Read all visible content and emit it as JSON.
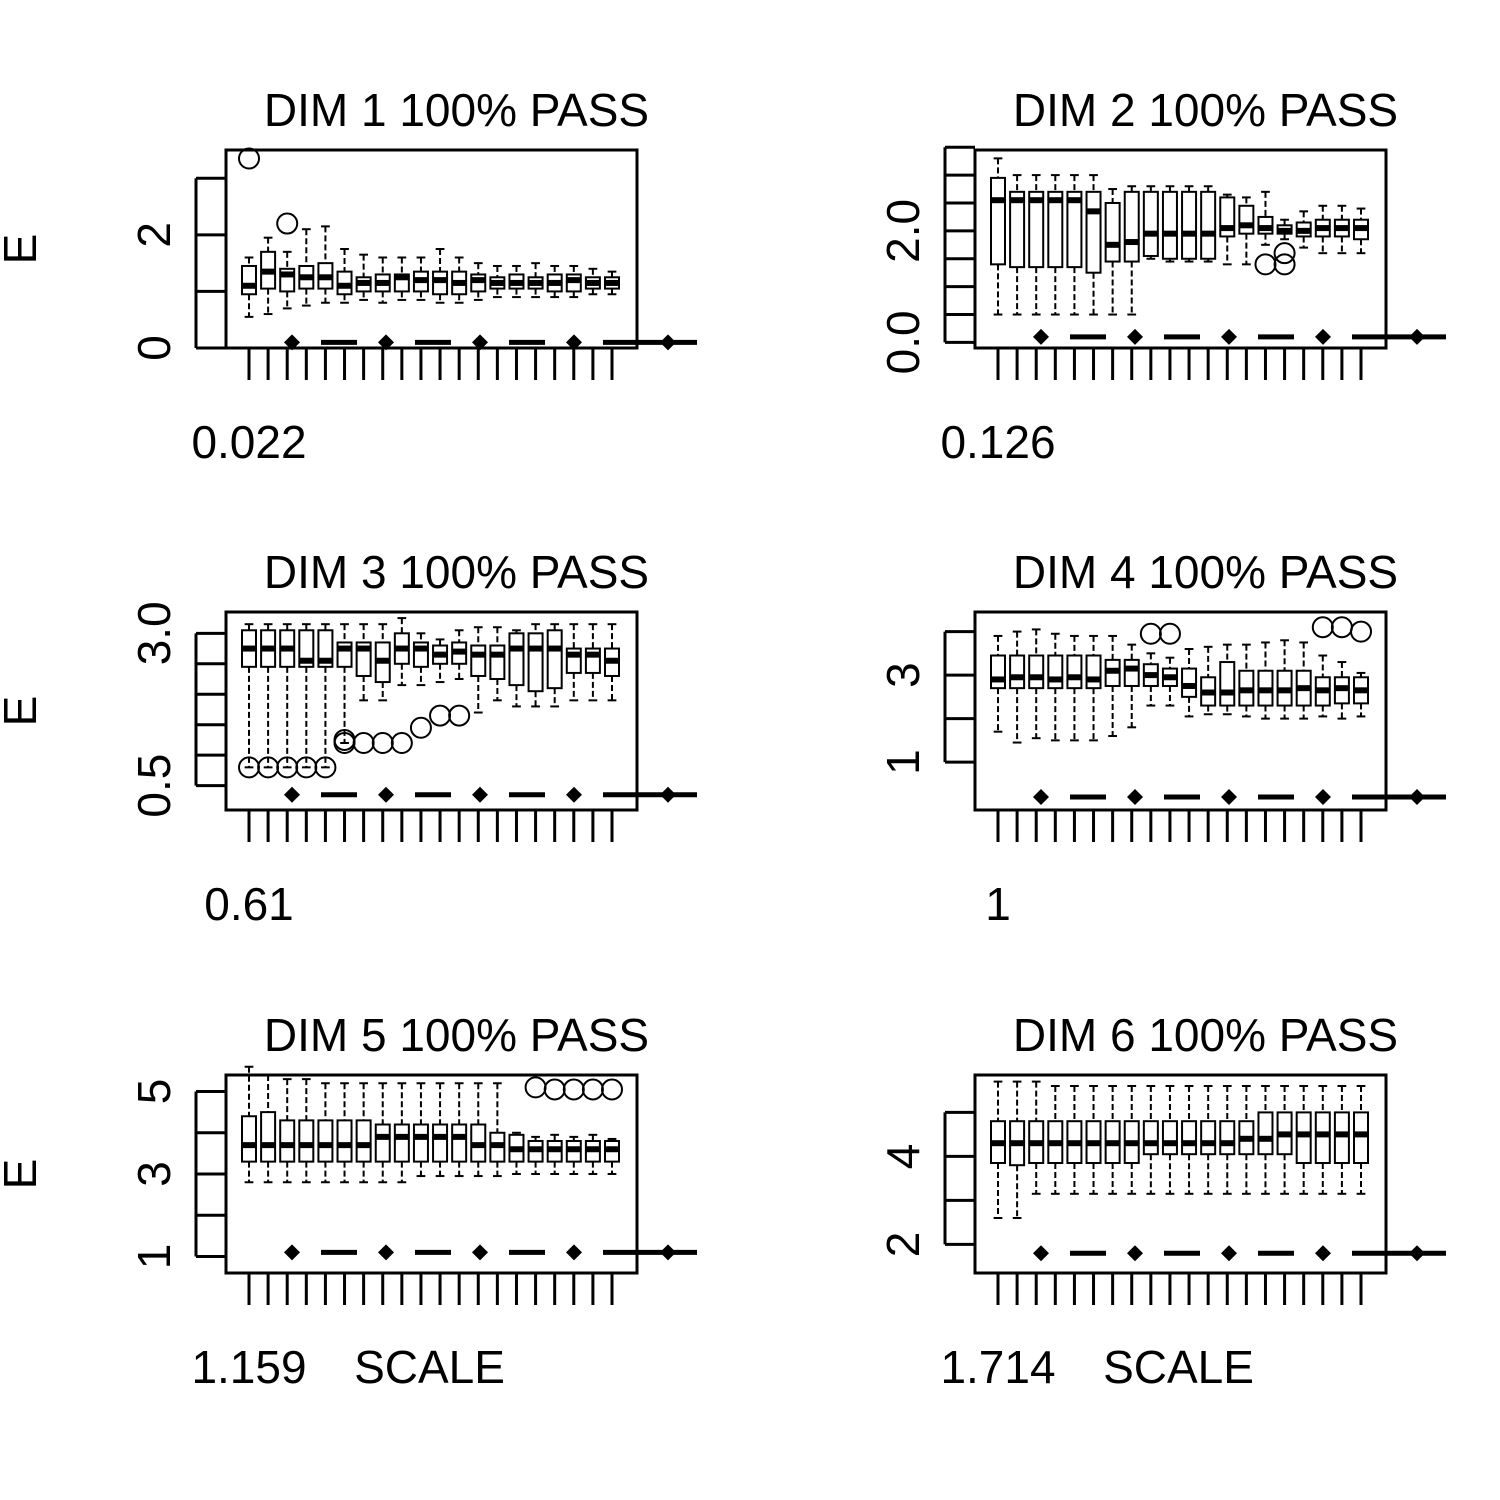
{
  "chart_data": [
    {
      "type": "boxplot",
      "title": "DIM 1 100% PASS",
      "ylabel": "E",
      "xlabel": "0.022",
      "ylim": [
        0,
        3.5
      ],
      "y_ticks": [
        0,
        2
      ],
      "minor_ticks": [
        0,
        1,
        2,
        3
      ],
      "boxes": [
        {
          "lo": 0.55,
          "q1": 0.95,
          "med": 1.1,
          "q3": 1.45,
          "hi": 1.6
        },
        {
          "lo": 0.6,
          "q1": 1.05,
          "med": 1.35,
          "q3": 1.7,
          "hi": 1.95
        },
        {
          "lo": 0.7,
          "q1": 1.0,
          "med": 1.3,
          "q3": 1.4,
          "hi": 1.7
        },
        {
          "lo": 0.75,
          "q1": 1.05,
          "med": 1.25,
          "q3": 1.45,
          "hi": 2.1
        },
        {
          "lo": 0.8,
          "q1": 1.05,
          "med": 1.25,
          "q3": 1.5,
          "hi": 2.15
        },
        {
          "lo": 0.8,
          "q1": 0.95,
          "med": 1.1,
          "q3": 1.35,
          "hi": 1.75
        },
        {
          "lo": 0.85,
          "q1": 1.0,
          "med": 1.15,
          "q3": 1.25,
          "hi": 1.65
        },
        {
          "lo": 0.8,
          "q1": 1.0,
          "med": 1.15,
          "q3": 1.3,
          "hi": 1.6
        },
        {
          "lo": 0.85,
          "q1": 1.0,
          "med": 1.25,
          "q3": 1.3,
          "hi": 1.6
        },
        {
          "lo": 0.85,
          "q1": 1.0,
          "med": 1.2,
          "q3": 1.35,
          "hi": 1.6
        },
        {
          "lo": 0.8,
          "q1": 0.95,
          "med": 1.2,
          "q3": 1.35,
          "hi": 1.75
        },
        {
          "lo": 0.8,
          "q1": 0.95,
          "med": 1.15,
          "q3": 1.35,
          "hi": 1.6
        },
        {
          "lo": 0.85,
          "q1": 1.0,
          "med": 1.2,
          "q3": 1.3,
          "hi": 1.5
        },
        {
          "lo": 0.9,
          "q1": 1.05,
          "med": 1.15,
          "q3": 1.25,
          "hi": 1.45
        },
        {
          "lo": 0.9,
          "q1": 1.05,
          "med": 1.15,
          "q3": 1.3,
          "hi": 1.45
        },
        {
          "lo": 0.9,
          "q1": 1.05,
          "med": 1.15,
          "q3": 1.25,
          "hi": 1.5
        },
        {
          "lo": 0.9,
          "q1": 1.0,
          "med": 1.15,
          "q3": 1.3,
          "hi": 1.45
        },
        {
          "lo": 0.9,
          "q1": 1.0,
          "med": 1.2,
          "q3": 1.3,
          "hi": 1.45
        },
        {
          "lo": 0.95,
          "q1": 1.05,
          "med": 1.15,
          "q3": 1.25,
          "hi": 1.4
        },
        {
          "lo": 0.95,
          "q1": 1.05,
          "med": 1.15,
          "q3": 1.25,
          "hi": 1.35
        }
      ],
      "outliers": [
        [
          1,
          3.35
        ],
        [
          3,
          2.2
        ]
      ],
      "bottom_row_y": 0.1
    },
    {
      "type": "boxplot",
      "title": "DIM 2 100% PASS",
      "ylabel": "",
      "xlabel": "0.126",
      "ylim": [
        -0.1,
        3.45
      ],
      "y_ticks": [
        0.0,
        2.0
      ],
      "y_tick_labels": [
        "0.0",
        "2.0"
      ],
      "minor_ticks": [
        0.0,
        0.5,
        1.0,
        1.5,
        2.0,
        2.5,
        3.0,
        3.5
      ],
      "boxes": [
        {
          "lo": 0.5,
          "q1": 1.4,
          "med": 2.55,
          "q3": 2.95,
          "hi": 3.3
        },
        {
          "lo": 0.5,
          "q1": 1.35,
          "med": 2.55,
          "q3": 2.7,
          "hi": 3.0
        },
        {
          "lo": 0.5,
          "q1": 1.35,
          "med": 2.55,
          "q3": 2.7,
          "hi": 3.0
        },
        {
          "lo": 0.5,
          "q1": 1.35,
          "med": 2.55,
          "q3": 2.7,
          "hi": 3.0
        },
        {
          "lo": 0.5,
          "q1": 1.35,
          "med": 2.55,
          "q3": 2.7,
          "hi": 3.0
        },
        {
          "lo": 0.5,
          "q1": 1.25,
          "med": 2.35,
          "q3": 2.7,
          "hi": 3.0
        },
        {
          "lo": 0.5,
          "q1": 1.45,
          "med": 1.75,
          "q3": 2.5,
          "hi": 2.75
        },
        {
          "lo": 0.5,
          "q1": 1.45,
          "med": 1.8,
          "q3": 2.7,
          "hi": 2.8
        },
        {
          "lo": 1.5,
          "q1": 1.55,
          "med": 1.95,
          "q3": 2.7,
          "hi": 2.8
        },
        {
          "lo": 1.45,
          "q1": 1.5,
          "med": 1.95,
          "q3": 2.7,
          "hi": 2.8
        },
        {
          "lo": 1.45,
          "q1": 1.5,
          "med": 1.95,
          "q3": 2.7,
          "hi": 2.8
        },
        {
          "lo": 1.45,
          "q1": 1.5,
          "med": 1.95,
          "q3": 2.7,
          "hi": 2.8
        },
        {
          "lo": 1.4,
          "q1": 1.9,
          "med": 2.05,
          "q3": 2.6,
          "hi": 2.65
        },
        {
          "lo": 1.4,
          "q1": 1.95,
          "med": 2.1,
          "q3": 2.45,
          "hi": 2.6
        },
        {
          "lo": 1.75,
          "q1": 1.95,
          "med": 2.05,
          "q3": 2.25,
          "hi": 2.7
        },
        {
          "lo": 1.85,
          "q1": 1.95,
          "med": 2.0,
          "q3": 2.1,
          "hi": 2.2
        },
        {
          "lo": 1.7,
          "q1": 1.9,
          "med": 2.0,
          "q3": 2.15,
          "hi": 2.35
        },
        {
          "lo": 1.6,
          "q1": 1.9,
          "med": 2.05,
          "q3": 2.2,
          "hi": 2.45
        },
        {
          "lo": 1.6,
          "q1": 1.9,
          "med": 2.05,
          "q3": 2.2,
          "hi": 2.45
        },
        {
          "lo": 1.6,
          "q1": 1.85,
          "med": 2.05,
          "q3": 2.2,
          "hi": 2.4
        }
      ],
      "outliers": [
        [
          15,
          1.4
        ],
        [
          16,
          1.4
        ],
        [
          16,
          1.6
        ]
      ],
      "bottom_row_y": 0.1
    },
    {
      "type": "boxplot",
      "title": "DIM 3 100% PASS",
      "ylabel": "E",
      "xlabel": "0.61",
      "ylim": [
        0.1,
        3.35
      ],
      "y_ticks": [
        0.5,
        3.0
      ],
      "y_tick_labels": [
        "0.5",
        "3.0"
      ],
      "minor_ticks": [
        0.5,
        1.0,
        1.5,
        2.0,
        2.5,
        3.0
      ],
      "boxes": [
        {
          "lo": 0.8,
          "q1": 2.45,
          "med": 2.75,
          "q3": 3.05,
          "hi": 3.15
        },
        {
          "lo": 0.8,
          "q1": 2.45,
          "med": 2.75,
          "q3": 3.05,
          "hi": 3.15
        },
        {
          "lo": 0.8,
          "q1": 2.45,
          "med": 2.75,
          "q3": 3.05,
          "hi": 3.15
        },
        {
          "lo": 0.8,
          "q1": 2.45,
          "med": 2.55,
          "q3": 3.05,
          "hi": 3.15
        },
        {
          "lo": 0.8,
          "q1": 2.45,
          "med": 2.55,
          "q3": 3.05,
          "hi": 3.15
        },
        {
          "lo": 1.2,
          "q1": 2.45,
          "med": 2.75,
          "q3": 2.85,
          "hi": 3.15
        },
        {
          "lo": 1.9,
          "q1": 2.3,
          "med": 2.75,
          "q3": 2.85,
          "hi": 3.15
        },
        {
          "lo": 1.9,
          "q1": 2.2,
          "med": 2.55,
          "q3": 2.85,
          "hi": 3.15
        },
        {
          "lo": 2.15,
          "q1": 2.5,
          "med": 2.75,
          "q3": 3.0,
          "hi": 3.25
        },
        {
          "lo": 2.15,
          "q1": 2.45,
          "med": 2.75,
          "q3": 2.85,
          "hi": 3.0
        },
        {
          "lo": 2.2,
          "q1": 2.5,
          "med": 2.65,
          "q3": 2.8,
          "hi": 2.9
        },
        {
          "lo": 2.25,
          "q1": 2.5,
          "med": 2.7,
          "q3": 2.85,
          "hi": 3.05
        },
        {
          "lo": 1.7,
          "q1": 2.3,
          "med": 2.65,
          "q3": 2.8,
          "hi": 3.1
        },
        {
          "lo": 1.9,
          "q1": 2.25,
          "med": 2.65,
          "q3": 2.8,
          "hi": 3.1
        },
        {
          "lo": 1.8,
          "q1": 2.15,
          "med": 2.75,
          "q3": 3.0,
          "hi": 3.05
        },
        {
          "lo": 1.8,
          "q1": 2.05,
          "med": 2.75,
          "q3": 3.0,
          "hi": 3.15
        },
        {
          "lo": 1.8,
          "q1": 2.1,
          "med": 2.75,
          "q3": 3.05,
          "hi": 3.15
        },
        {
          "lo": 1.9,
          "q1": 2.35,
          "med": 2.65,
          "q3": 2.75,
          "hi": 3.15
        },
        {
          "lo": 1.9,
          "q1": 2.35,
          "med": 2.65,
          "q3": 2.75,
          "hi": 3.15
        },
        {
          "lo": 1.9,
          "q1": 2.3,
          "med": 2.55,
          "q3": 2.75,
          "hi": 3.15
        }
      ],
      "outliers": [
        [
          1,
          0.8
        ],
        [
          2,
          0.8
        ],
        [
          3,
          0.8
        ],
        [
          4,
          0.8
        ],
        [
          5,
          0.8
        ],
        [
          6,
          1.2
        ],
        [
          6,
          1.25
        ],
        [
          7,
          1.2
        ],
        [
          8,
          1.2
        ],
        [
          9,
          1.2
        ],
        [
          10,
          1.45
        ],
        [
          11,
          1.65
        ],
        [
          12,
          1.65
        ]
      ],
      "bottom_row_y": 0.35
    },
    {
      "type": "boxplot",
      "title": "DIM 4 100% PASS",
      "ylabel": "",
      "xlabel": "1",
      "ylim": [
        -0.1,
        4.45
      ],
      "y_ticks": [
        1,
        3
      ],
      "minor_ticks": [
        1,
        2,
        3,
        4
      ],
      "boxes": [
        {
          "lo": 1.7,
          "q1": 2.7,
          "med": 2.9,
          "q3": 3.45,
          "hi": 3.9
        },
        {
          "lo": 1.45,
          "q1": 2.7,
          "med": 2.95,
          "q3": 3.45,
          "hi": 4.0
        },
        {
          "lo": 1.55,
          "q1": 2.7,
          "med": 2.95,
          "q3": 3.45,
          "hi": 4.05
        },
        {
          "lo": 1.5,
          "q1": 2.7,
          "med": 2.9,
          "q3": 3.45,
          "hi": 3.95
        },
        {
          "lo": 1.5,
          "q1": 2.7,
          "med": 2.95,
          "q3": 3.45,
          "hi": 3.9
        },
        {
          "lo": 1.5,
          "q1": 2.7,
          "med": 2.9,
          "q3": 3.45,
          "hi": 3.9
        },
        {
          "lo": 1.6,
          "q1": 2.75,
          "med": 3.1,
          "q3": 3.35,
          "hi": 3.9
        },
        {
          "lo": 1.8,
          "q1": 2.75,
          "med": 3.15,
          "q3": 3.35,
          "hi": 3.7
        },
        {
          "lo": 2.3,
          "q1": 2.75,
          "med": 3.0,
          "q3": 3.25,
          "hi": 3.5
        },
        {
          "lo": 2.3,
          "q1": 2.75,
          "med": 2.95,
          "q3": 3.15,
          "hi": 3.4
        },
        {
          "lo": 2.05,
          "q1": 2.5,
          "med": 2.75,
          "q3": 3.15,
          "hi": 3.6
        },
        {
          "lo": 2.1,
          "q1": 2.3,
          "med": 2.6,
          "q3": 2.95,
          "hi": 3.65
        },
        {
          "lo": 2.1,
          "q1": 2.3,
          "med": 2.6,
          "q3": 3.3,
          "hi": 3.7
        },
        {
          "lo": 2.05,
          "q1": 2.3,
          "med": 2.65,
          "q3": 3.1,
          "hi": 3.7
        },
        {
          "lo": 2.0,
          "q1": 2.3,
          "med": 2.65,
          "q3": 3.1,
          "hi": 3.75
        },
        {
          "lo": 2.0,
          "q1": 2.3,
          "med": 2.65,
          "q3": 3.1,
          "hi": 3.8
        },
        {
          "lo": 2.0,
          "q1": 2.3,
          "med": 2.7,
          "q3": 3.1,
          "hi": 3.75
        },
        {
          "lo": 2.05,
          "q1": 2.3,
          "med": 2.65,
          "q3": 2.95,
          "hi": 3.45
        },
        {
          "lo": 2.0,
          "q1": 2.35,
          "med": 2.7,
          "q3": 2.95,
          "hi": 3.3
        },
        {
          "lo": 2.05,
          "q1": 2.35,
          "med": 2.65,
          "q3": 2.95,
          "hi": 3.05
        }
      ],
      "outliers": [
        [
          9,
          3.95
        ],
        [
          10,
          3.95
        ],
        [
          18,
          4.1
        ],
        [
          19,
          4.1
        ],
        [
          20,
          4.0
        ]
      ],
      "bottom_row_y": 0.2
    },
    {
      "type": "boxplot",
      "title": "DIM 5 100% PASS",
      "ylabel": "E",
      "xlabel": "1.159",
      "xlabel2": "SCALE",
      "ylim": [
        0.6,
        5.4
      ],
      "y_ticks": [
        1,
        3,
        5
      ],
      "minor_ticks": [
        1,
        2,
        3,
        4,
        5
      ],
      "boxes": [
        {
          "lo": 2.8,
          "q1": 3.3,
          "med": 3.7,
          "q3": 4.4,
          "hi": 5.6
        },
        {
          "lo": 2.8,
          "q1": 3.3,
          "med": 3.7,
          "q3": 4.5,
          "hi": 5.4
        },
        {
          "lo": 2.8,
          "q1": 3.3,
          "med": 3.7,
          "q3": 4.3,
          "hi": 5.3
        },
        {
          "lo": 2.8,
          "q1": 3.3,
          "med": 3.7,
          "q3": 4.3,
          "hi": 5.3
        },
        {
          "lo": 2.8,
          "q1": 3.3,
          "med": 3.7,
          "q3": 4.3,
          "hi": 5.2
        },
        {
          "lo": 2.8,
          "q1": 3.3,
          "med": 3.7,
          "q3": 4.3,
          "hi": 5.2
        },
        {
          "lo": 2.8,
          "q1": 3.3,
          "med": 3.7,
          "q3": 4.3,
          "hi": 5.2
        },
        {
          "lo": 2.8,
          "q1": 3.3,
          "med": 3.9,
          "q3": 4.2,
          "hi": 5.2
        },
        {
          "lo": 2.8,
          "q1": 3.3,
          "med": 3.9,
          "q3": 4.2,
          "hi": 5.2
        },
        {
          "lo": 2.95,
          "q1": 3.3,
          "med": 3.9,
          "q3": 4.2,
          "hi": 5.2
        },
        {
          "lo": 2.95,
          "q1": 3.3,
          "med": 3.9,
          "q3": 4.2,
          "hi": 5.2
        },
        {
          "lo": 2.95,
          "q1": 3.3,
          "med": 3.9,
          "q3": 4.2,
          "hi": 5.2
        },
        {
          "lo": 2.95,
          "q1": 3.3,
          "med": 3.7,
          "q3": 4.2,
          "hi": 5.2
        },
        {
          "lo": 2.95,
          "q1": 3.3,
          "med": 3.7,
          "q3": 4.0,
          "hi": 5.2
        },
        {
          "lo": 3.0,
          "q1": 3.3,
          "med": 3.6,
          "q3": 3.95,
          "hi": 4.0
        },
        {
          "lo": 3.0,
          "q1": 3.3,
          "med": 3.6,
          "q3": 3.8,
          "hi": 3.9
        },
        {
          "lo": 3.0,
          "q1": 3.3,
          "med": 3.6,
          "q3": 3.8,
          "hi": 3.95
        },
        {
          "lo": 3.0,
          "q1": 3.3,
          "med": 3.6,
          "q3": 3.8,
          "hi": 3.9
        },
        {
          "lo": 3.0,
          "q1": 3.3,
          "med": 3.6,
          "q3": 3.8,
          "hi": 3.95
        },
        {
          "lo": 3.0,
          "q1": 3.3,
          "med": 3.6,
          "q3": 3.8,
          "hi": 3.85
        }
      ],
      "outliers": [
        [
          16,
          5.1
        ],
        [
          17,
          5.05
        ],
        [
          18,
          5.05
        ],
        [
          19,
          5.05
        ],
        [
          20,
          5.05
        ]
      ],
      "bottom_row_y": 1.1
    },
    {
      "type": "boxplot",
      "title": "DIM 6 100% PASS",
      "ylabel": "",
      "xlabel": "1.714",
      "xlabel2": "SCALE",
      "ylim": [
        1.35,
        5.85
      ],
      "y_ticks": [
        2,
        4
      ],
      "minor_ticks": [
        2,
        3,
        4,
        5
      ],
      "boxes": [
        {
          "lo": 2.6,
          "q1": 3.85,
          "med": 4.3,
          "q3": 4.8,
          "hi": 5.7
        },
        {
          "lo": 2.6,
          "q1": 3.8,
          "med": 4.3,
          "q3": 4.8,
          "hi": 5.7
        },
        {
          "lo": 3.15,
          "q1": 3.85,
          "med": 4.3,
          "q3": 4.8,
          "hi": 5.7
        },
        {
          "lo": 3.15,
          "q1": 3.85,
          "med": 4.3,
          "q3": 4.8,
          "hi": 5.6
        },
        {
          "lo": 3.15,
          "q1": 3.85,
          "med": 4.3,
          "q3": 4.8,
          "hi": 5.6
        },
        {
          "lo": 3.15,
          "q1": 3.85,
          "med": 4.3,
          "q3": 4.8,
          "hi": 5.6
        },
        {
          "lo": 3.15,
          "q1": 3.85,
          "med": 4.3,
          "q3": 4.8,
          "hi": 5.6
        },
        {
          "lo": 3.15,
          "q1": 3.85,
          "med": 4.3,
          "q3": 4.8,
          "hi": 5.6
        },
        {
          "lo": 3.15,
          "q1": 4.05,
          "med": 4.3,
          "q3": 4.8,
          "hi": 5.6
        },
        {
          "lo": 3.15,
          "q1": 4.05,
          "med": 4.3,
          "q3": 4.8,
          "hi": 5.6
        },
        {
          "lo": 3.15,
          "q1": 4.05,
          "med": 4.3,
          "q3": 4.8,
          "hi": 5.6
        },
        {
          "lo": 3.15,
          "q1": 4.05,
          "med": 4.3,
          "q3": 4.8,
          "hi": 5.6
        },
        {
          "lo": 3.15,
          "q1": 4.05,
          "med": 4.3,
          "q3": 4.8,
          "hi": 5.6
        },
        {
          "lo": 3.15,
          "q1": 4.05,
          "med": 4.4,
          "q3": 4.8,
          "hi": 5.6
        },
        {
          "lo": 3.15,
          "q1": 4.05,
          "med": 4.4,
          "q3": 5.0,
          "hi": 5.6
        },
        {
          "lo": 3.15,
          "q1": 4.05,
          "med": 4.5,
          "q3": 5.0,
          "hi": 5.6
        },
        {
          "lo": 3.15,
          "q1": 3.85,
          "med": 4.5,
          "q3": 5.0,
          "hi": 5.6
        },
        {
          "lo": 3.15,
          "q1": 3.85,
          "med": 4.5,
          "q3": 5.0,
          "hi": 5.6
        },
        {
          "lo": 3.15,
          "q1": 3.85,
          "med": 4.5,
          "q3": 5.0,
          "hi": 5.6
        },
        {
          "lo": 3.15,
          "q1": 3.85,
          "med": 4.5,
          "q3": 5.0,
          "hi": 5.6
        }
      ],
      "outliers": [],
      "bottom_row_y": 1.8
    }
  ]
}
